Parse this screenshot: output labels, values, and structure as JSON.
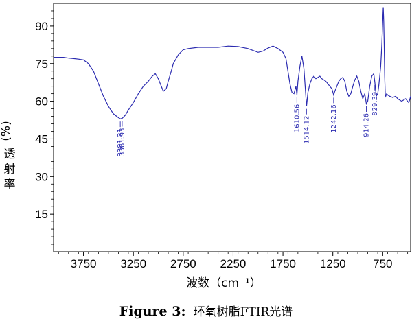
{
  "chart_data": {
    "type": "line",
    "title": "",
    "xlabel": "波数（cm⁻¹）",
    "ylabel_unit": "(%)",
    "ylabel_text": [
      "透",
      "射",
      "率"
    ],
    "xlim": [
      4050,
      470
    ],
    "ylim": [
      0,
      99
    ],
    "x_ticks": [
      3750,
      3250,
      2750,
      2250,
      1750,
      1250,
      750
    ],
    "y_ticks": [
      15,
      30,
      45,
      60,
      75,
      90
    ],
    "line_color": "#2b2bb0",
    "peak_labels": [
      "3381.21",
      "3361.93",
      "1610.56",
      "1514.12",
      "1242.16",
      "914.26",
      "829.39"
    ],
    "series": [
      {
        "x": [
          4050,
          3950,
          3900,
          3850,
          3800,
          3750,
          3700,
          3650,
          3600,
          3550,
          3500,
          3450,
          3400,
          3381,
          3362,
          3330,
          3300,
          3250,
          3200,
          3150,
          3100,
          3060,
          3030,
          3000,
          2970,
          2950,
          2920,
          2900,
          2870,
          2850,
          2800,
          2750,
          2700,
          2600,
          2500,
          2400,
          2300,
          2200,
          2100,
          2000,
          1950,
          1900,
          1850,
          1800,
          1750,
          1720,
          1700,
          1680,
          1660,
          1640,
          1620,
          1610,
          1600,
          1580,
          1560,
          1540,
          1514,
          1500,
          1480,
          1460,
          1440,
          1420,
          1400,
          1380,
          1360,
          1340,
          1320,
          1300,
          1280,
          1260,
          1242,
          1230,
          1210,
          1190,
          1170,
          1150,
          1130,
          1110,
          1090,
          1070,
          1050,
          1030,
          1010,
          990,
          970,
          950,
          930,
          914,
          900,
          880,
          860,
          840,
          829,
          815,
          800,
          790,
          780,
          770,
          760,
          750,
          745,
          740,
          735,
          730,
          725,
          720,
          710,
          700,
          680,
          650,
          620,
          600,
          580,
          560,
          540,
          520,
          500,
          490,
          480,
          470
        ],
        "y": [
          77.5,
          77.5,
          77.2,
          77,
          76.8,
          76.5,
          75,
          72,
          67,
          62,
          58,
          55,
          53.5,
          53,
          53.2,
          54.5,
          56.5,
          59.5,
          63,
          66,
          68,
          70,
          71,
          69,
          66,
          64,
          65,
          68,
          72,
          75,
          78.5,
          80.5,
          81,
          81.5,
          81.5,
          81.5,
          82,
          81.8,
          81,
          79.5,
          80,
          81.2,
          82,
          81,
          79.5,
          77,
          72,
          67,
          63.5,
          63,
          66,
          62.5,
          68,
          74,
          78,
          73,
          58,
          63.5,
          67,
          69,
          70,
          69,
          69.5,
          70,
          69,
          68.5,
          68,
          67,
          66,
          65,
          62.5,
          64,
          66,
          68,
          69,
          69.5,
          68,
          64,
          62,
          63,
          66,
          68.5,
          70,
          68,
          64,
          61,
          63,
          59,
          60,
          66,
          70,
          71,
          67.5,
          62,
          63,
          66,
          70,
          74,
          82,
          92,
          97.5,
          92,
          82,
          70,
          63,
          62,
          63,
          62.5,
          62,
          61.5,
          62,
          61,
          60.5,
          60,
          60.5,
          61,
          60,
          59.5,
          60.5,
          62
        ]
      }
    ]
  },
  "caption": {
    "prefix": "Figure 3:",
    "text": "环氧树脂FTIR光谱"
  }
}
